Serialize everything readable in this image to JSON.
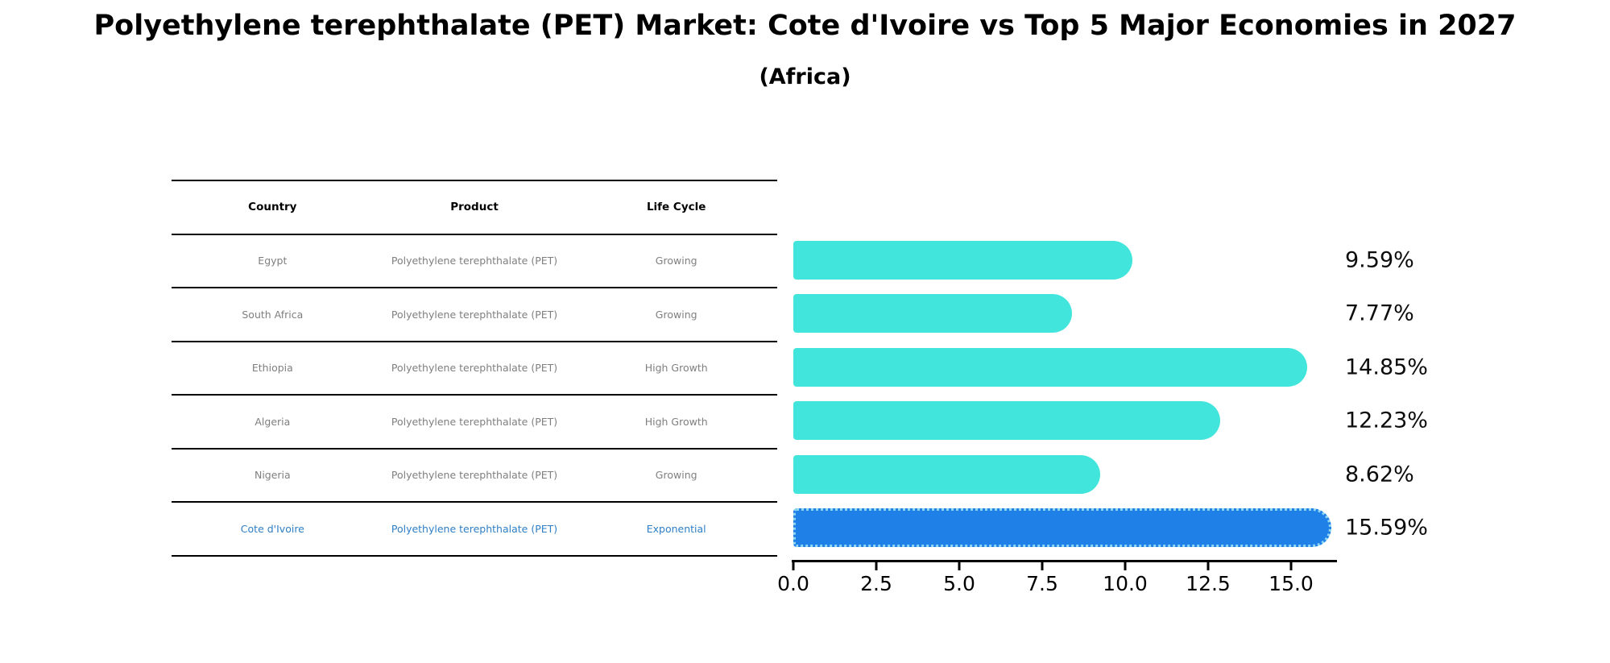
{
  "title": "Polyethylene terephthalate (PET) Market: Cote d'Ivoire vs Top 5 Major Economies in 2027",
  "subtitle": "(Africa)",
  "table": {
    "columns": [
      "Country",
      "Product",
      "Life Cycle"
    ],
    "rows": [
      {
        "country": "Egypt",
        "product": "Polyethylene terephthalate (PET)",
        "life_cycle": "Growing",
        "highlight": false
      },
      {
        "country": "South Africa",
        "product": "Polyethylene terephthalate (PET)",
        "life_cycle": "Growing",
        "highlight": false
      },
      {
        "country": "Ethiopia",
        "product": "Polyethylene terephthalate (PET)",
        "life_cycle": "High Growth",
        "highlight": false
      },
      {
        "country": "Algeria",
        "product": "Polyethylene terephthalate (PET)",
        "life_cycle": "High Growth",
        "highlight": false
      },
      {
        "country": "Nigeria",
        "product": "Polyethylene terephthalate (PET)",
        "life_cycle": "Growing",
        "highlight": false
      },
      {
        "country": "Cote d'Ivoire",
        "product": "Polyethylene terephthalate (PET)",
        "life_cycle": "Exponential",
        "highlight": true
      }
    ]
  },
  "chart_data": {
    "type": "bar",
    "orientation": "horizontal",
    "title": "Polyethylene terephthalate (PET) Market: Cote d'Ivoire vs Top 5 Major Economies in 2027",
    "subtitle": "(Africa)",
    "categories": [
      "Egypt",
      "South Africa",
      "Ethiopia",
      "Algeria",
      "Nigeria",
      "Cote d'Ivoire"
    ],
    "values": [
      9.59,
      7.77,
      14.85,
      12.23,
      8.62,
      15.59
    ],
    "value_labels": [
      "9.59%",
      "7.77%",
      "14.85%",
      "12.23%",
      "8.62%",
      "15.59%"
    ],
    "unit": "%",
    "x_ticks": [
      0.0,
      2.5,
      5.0,
      7.5,
      10.0,
      12.5,
      15.0
    ],
    "x_tick_labels": [
      "0.0",
      "2.5",
      "5.0",
      "7.5",
      "10.0",
      "12.5",
      "15.0"
    ],
    "xlim": [
      0,
      16.4
    ],
    "grid": false,
    "legend": false,
    "bar_color": "#42e5db",
    "highlight_index": 5,
    "highlight_bar_color": "#1f80e8",
    "highlight_edge_color": "#8fd6f2",
    "highlight_text_color": "#2e7fc5"
  }
}
